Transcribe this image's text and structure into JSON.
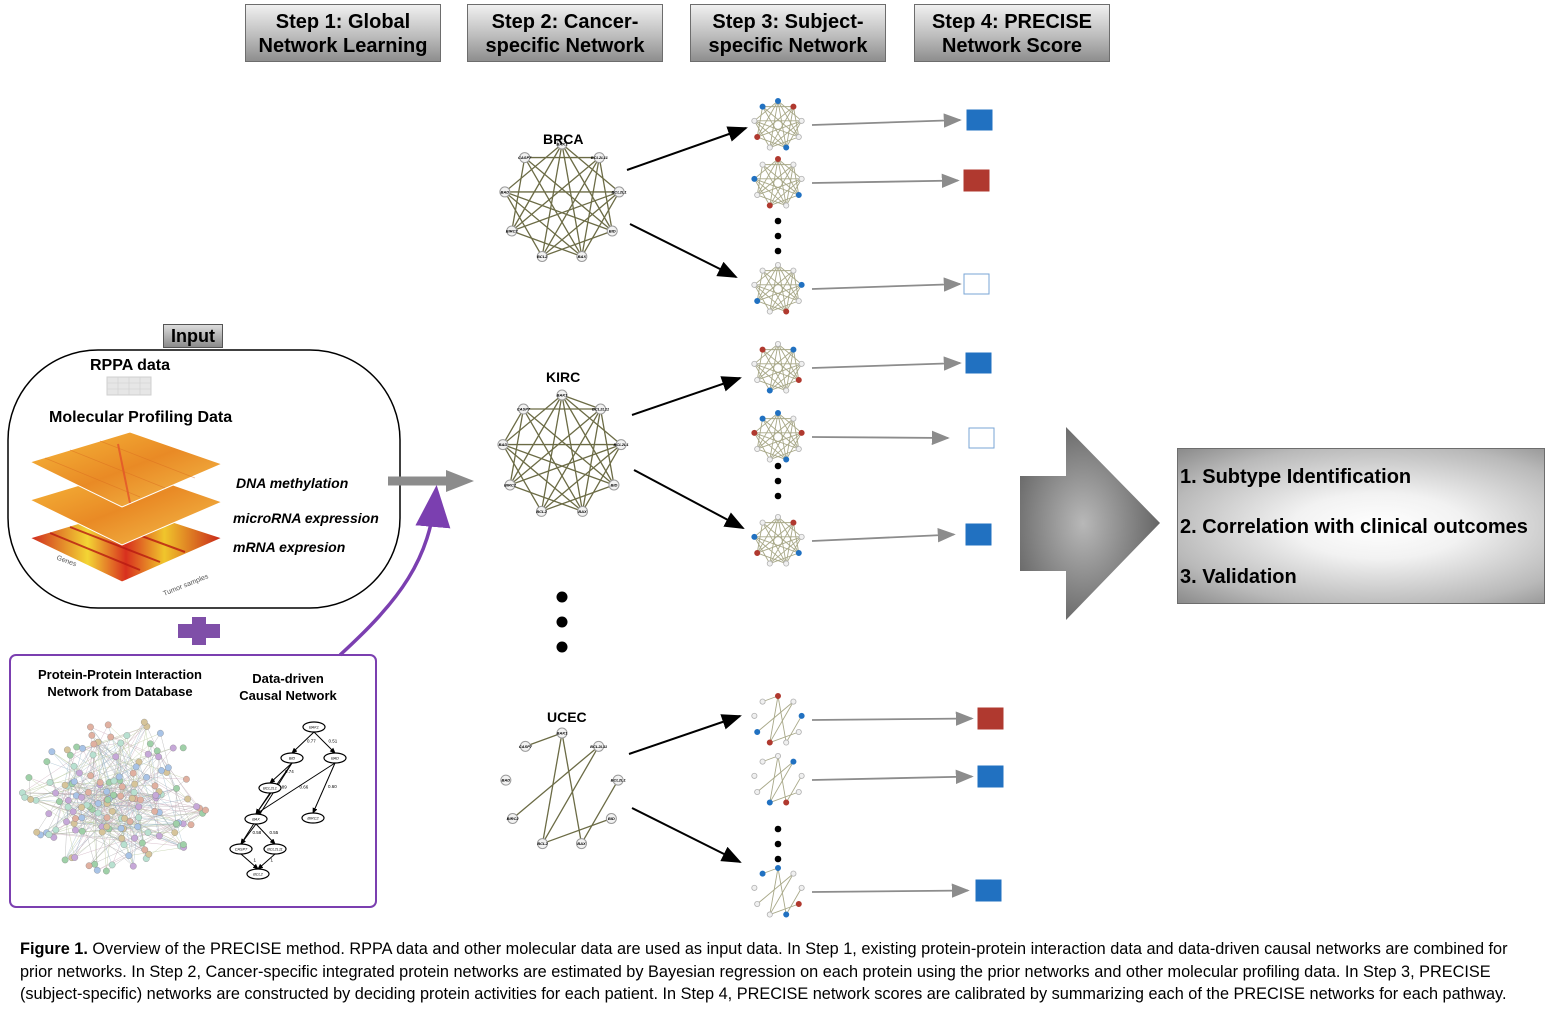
{
  "steps": [
    {
      "line1": "Step 1: Global",
      "line2": "Network Learning"
    },
    {
      "line1": "Step 2: Cancer-",
      "line2": "specific Network"
    },
    {
      "line1": "Step 3: Subject-",
      "line2": "specific Network"
    },
    {
      "line1": "Step 4: PRECISE",
      "line2": "Network Score"
    }
  ],
  "input": {
    "label": "Input",
    "rppa": "RPPA data",
    "molecular": "Molecular Profiling Data",
    "layers": [
      "DNA methylation",
      "microRNA expression",
      "mRNA expresion"
    ],
    "axis_genes": "Genes",
    "axis_samples": "Tumor samples"
  },
  "prior": {
    "ppi_line1": "Protein-Protein Interaction",
    "ppi_line2": "Network from Database",
    "causal_line1": "Data-driven",
    "causal_line2": "Causal Network",
    "causal_nodes": [
      "BAK1",
      "BID",
      "BAD",
      "BCL2L1",
      "BAX",
      "BIRC2",
      "CASP7",
      "BCL2L11",
      "BCL2"
    ],
    "causal_weights": [
      "0.51",
      "0.77",
      "0.74",
      "0.66",
      "0.89",
      "0.60",
      "0.58",
      "0.55",
      "1",
      "1"
    ]
  },
  "cancers": [
    {
      "name": "BRCA",
      "scores": [
        "blue",
        "red",
        "white"
      ]
    },
    {
      "name": "KIRC",
      "scores": [
        "blue",
        "white",
        "blue"
      ]
    },
    {
      "name": "UCEC",
      "scores": [
        "red",
        "blue",
        "blue"
      ]
    }
  ],
  "network_node_labels": [
    "BAK1",
    "BCL2L11",
    "BCL2L1",
    "BID",
    "BAX",
    "BCL2",
    "BIRC2",
    "BAD",
    "CASP7"
  ],
  "results": [
    "1. Subtype Identification",
    "2. Correlation with clinical outcomes",
    "3. Validation"
  ],
  "caption": {
    "label": "Figure 1.",
    "text": " Overview of the PRECISE method. RPPA data and other molecular data are used as input data. In Step 1, existing protein-protein interaction data and data-driven causal networks are combined for prior networks. In Step 2, Cancer-specific integrated protein networks are estimated by Bayesian regression on each protein using the prior networks and other molecular profiling data. In Step 3, PRECISE (subject-specific) networks are constructed by deciding protein activities for each patient. In Step 4, PRECISE network scores are calibrated by summarizing each of the PRECISE networks for each pathway."
  },
  "colors": {
    "blue": "#2171c1",
    "red": "#b0392f",
    "purple": "#7b3fb0",
    "edge": "#6b6b45",
    "arrow_gray": "#8c8c8c"
  }
}
